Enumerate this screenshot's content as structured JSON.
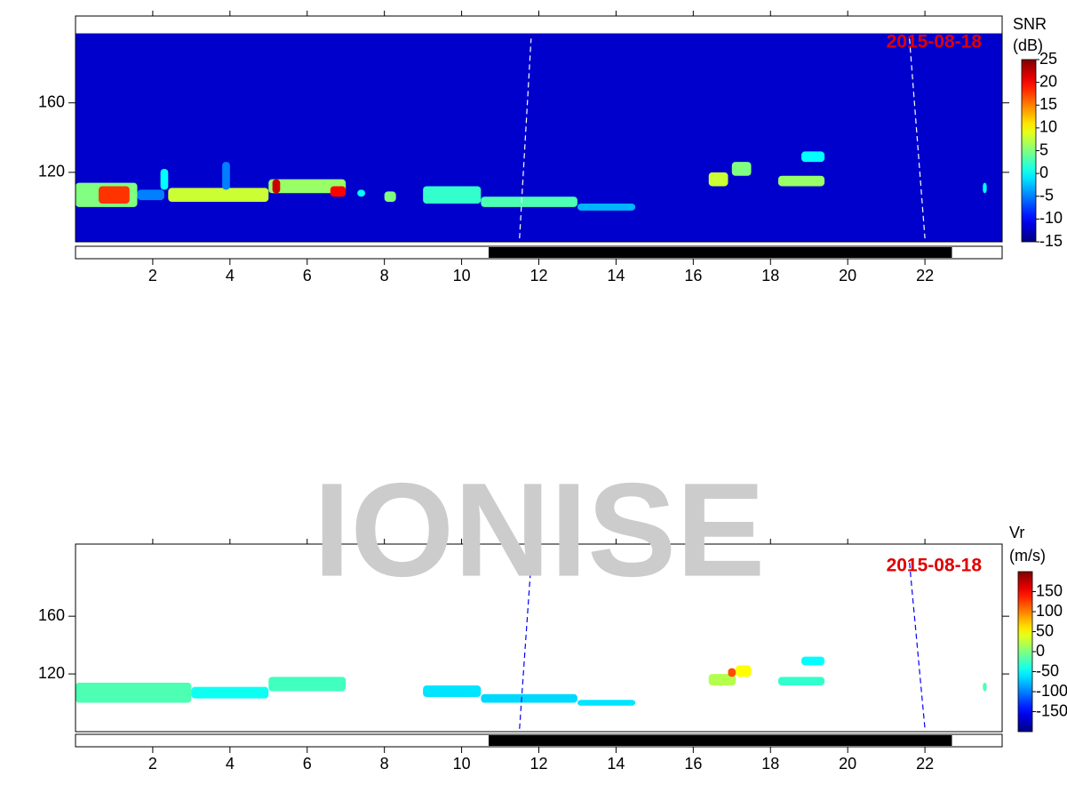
{
  "watermark": "IONISE",
  "chart_data": [
    {
      "type": "heatmap",
      "date_label": "2015-08-18",
      "colorbar_title": [
        "SNR",
        "(dB)"
      ],
      "clim": [
        -15,
        25
      ],
      "cticks": [
        25,
        20,
        15,
        10,
        5,
        0,
        -5,
        -10,
        -15
      ],
      "xlim": [
        0,
        24
      ],
      "xticks": [
        2,
        4,
        6,
        8,
        10,
        12,
        14,
        16,
        18,
        20,
        22
      ],
      "ylim": [
        80,
        210
      ],
      "yticks": [
        120,
        160
      ],
      "night": [
        10.7,
        22.7
      ],
      "track_color": "#ffffff",
      "cells": [
        {
          "x": [
            0,
            24
          ],
          "y": [
            80,
            200
          ],
          "value": -12
        },
        {
          "x": [
            0,
            1.6
          ],
          "y": [
            100,
            114
          ],
          "value": 5
        },
        {
          "x": [
            0.6,
            1.4
          ],
          "y": [
            102,
            112
          ],
          "value": 18
        },
        {
          "x": [
            1.6,
            2.3
          ],
          "y": [
            104,
            110
          ],
          "value": -5
        },
        {
          "x": [
            2.2,
            2.4
          ],
          "y": [
            110,
            122
          ],
          "value": 0
        },
        {
          "x": [
            2.4,
            5
          ],
          "y": [
            103,
            111
          ],
          "value": 8
        },
        {
          "x": [
            3.8,
            4.0
          ],
          "y": [
            110,
            126
          ],
          "value": -5
        },
        {
          "x": [
            5,
            7
          ],
          "y": [
            108,
            116
          ],
          "value": 6
        },
        {
          "x": [
            5.1,
            5.3
          ],
          "y": [
            108,
            116
          ],
          "value": 22
        },
        {
          "x": [
            6.6,
            7
          ],
          "y": [
            106,
            112
          ],
          "value": 20
        },
        {
          "x": [
            7.3,
            7.5
          ],
          "y": [
            106,
            110
          ],
          "value": 0
        },
        {
          "x": [
            8,
            8.3
          ],
          "y": [
            103,
            109
          ],
          "value": 5
        },
        {
          "x": [
            9,
            10.5
          ],
          "y": [
            102,
            112
          ],
          "value": 2
        },
        {
          "x": [
            10.5,
            13
          ],
          "y": [
            100,
            106
          ],
          "value": 3
        },
        {
          "x": [
            13,
            14.5
          ],
          "y": [
            98,
            102
          ],
          "value": -3
        },
        {
          "x": [
            16.4,
            16.9
          ],
          "y": [
            112,
            120
          ],
          "value": 8
        },
        {
          "x": [
            17,
            17.5
          ],
          "y": [
            118,
            126
          ],
          "value": 5
        },
        {
          "x": [
            18.2,
            19.4
          ],
          "y": [
            112,
            118
          ],
          "value": 6
        },
        {
          "x": [
            18.8,
            19.4
          ],
          "y": [
            126,
            132
          ],
          "value": 0
        },
        {
          "x": [
            23.5,
            23.6
          ],
          "y": [
            108,
            114
          ],
          "value": 0
        }
      ],
      "tracks": [
        {
          "x": [
            11.5,
            11.8
          ],
          "y": [
            82,
            197
          ]
        },
        {
          "x": [
            21.6,
            22.0
          ],
          "y": [
            197,
            82
          ]
        }
      ]
    },
    {
      "type": "heatmap",
      "date_label": "2015-08-18",
      "colorbar_title": [
        "Vr",
        "(m/s)"
      ],
      "clim": [
        -200,
        200
      ],
      "cticks": [
        150,
        100,
        50,
        0,
        -50,
        -100,
        -150
      ],
      "xlim": [
        0,
        24
      ],
      "xticks": [
        2,
        4,
        6,
        8,
        10,
        12,
        14,
        16,
        18,
        20,
        22
      ],
      "ylim": [
        80,
        210
      ],
      "yticks": [
        120,
        160
      ],
      "night": [
        10.7,
        22.7
      ],
      "track_color": "#0000ff",
      "cells": [
        {
          "x": [
            0,
            3
          ],
          "y": [
            100,
            114
          ],
          "value": -20
        },
        {
          "x": [
            3,
            5
          ],
          "y": [
            103,
            111
          ],
          "value": -45
        },
        {
          "x": [
            5,
            7
          ],
          "y": [
            108,
            118
          ],
          "value": -25
        },
        {
          "x": [
            9,
            10.5
          ],
          "y": [
            104,
            112
          ],
          "value": -60
        },
        {
          "x": [
            10.5,
            13
          ],
          "y": [
            100,
            106
          ],
          "value": -65
        },
        {
          "x": [
            13,
            14.5
          ],
          "y": [
            98,
            102
          ],
          "value": -60
        },
        {
          "x": [
            16.4,
            17.1
          ],
          "y": [
            112,
            120
          ],
          "value": 20
        },
        {
          "x": [
            17.1,
            17.5
          ],
          "y": [
            118,
            126
          ],
          "value": 50
        },
        {
          "x": [
            16.9,
            17.1
          ],
          "y": [
            118,
            124
          ],
          "value": 120
        },
        {
          "x": [
            18.2,
            19.4
          ],
          "y": [
            112,
            118
          ],
          "value": -30
        },
        {
          "x": [
            18.8,
            19.4
          ],
          "y": [
            126,
            132
          ],
          "value": -50
        },
        {
          "x": [
            23.5,
            23.6
          ],
          "y": [
            108,
            114
          ],
          "value": -20
        }
      ],
      "tracks": [
        {
          "x": [
            11.5,
            11.8
          ],
          "y": [
            82,
            197
          ]
        },
        {
          "x": [
            21.6,
            22.0
          ],
          "y": [
            197,
            82
          ]
        }
      ]
    }
  ]
}
